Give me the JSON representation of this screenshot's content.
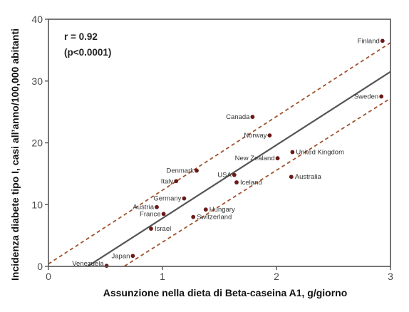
{
  "chart_data": {
    "type": "scatter",
    "xlabel": "Assunzione nella dieta di Beta-caseina A1, g/giorno",
    "ylabel": "Incidenza diabete tipo I, casi all’anno/100,000 abitanti",
    "xlim": [
      0,
      3
    ],
    "ylim": [
      0,
      40
    ],
    "x_ticks": [
      "0",
      "1",
      "2",
      "3"
    ],
    "y_ticks": [
      "0",
      "10",
      "20",
      "30",
      "40"
    ],
    "grid": false,
    "annotation": [
      "r = 0.92",
      "(p<0.0001)"
    ],
    "points": [
      {
        "label": "Finland",
        "x": 2.93,
        "y": 36.5
      },
      {
        "label": "Sweden",
        "x": 2.92,
        "y": 27.5
      },
      {
        "label": "Canada",
        "x": 1.79,
        "y": 24.2
      },
      {
        "label": "Norway",
        "x": 1.94,
        "y": 21.2
      },
      {
        "label": "New Zealand",
        "x": 2.01,
        "y": 17.5
      },
      {
        "label": "United Kingdom",
        "x": 2.14,
        "y": 18.5
      },
      {
        "label": "Australia",
        "x": 2.13,
        "y": 14.5
      },
      {
        "label": "Denmark",
        "x": 1.3,
        "y": 15.5
      },
      {
        "label": "USA",
        "x": 1.63,
        "y": 14.8
      },
      {
        "label": "Iceland",
        "x": 1.65,
        "y": 13.6
      },
      {
        "label": "Italy",
        "x": 1.12,
        "y": 13.8
      },
      {
        "label": "Germany",
        "x": 1.19,
        "y": 11.0
      },
      {
        "label": "Austria",
        "x": 0.95,
        "y": 9.6
      },
      {
        "label": "Hungary",
        "x": 1.38,
        "y": 9.2
      },
      {
        "label": "France",
        "x": 1.01,
        "y": 8.5
      },
      {
        "label": "Switzerland",
        "x": 1.27,
        "y": 8.0
      },
      {
        "label": "Israel",
        "x": 0.9,
        "y": 6.1
      },
      {
        "label": "Japan",
        "x": 0.74,
        "y": 1.7
      },
      {
        "label": "Venezuela",
        "x": 0.51,
        "y": 0.1
      }
    ],
    "regression_line": {
      "x": [
        0.3,
        3.0
      ],
      "y": [
        -0.5,
        31.5
      ],
      "color": "#555555"
    },
    "confidence_bands": [
      {
        "x": [
          0.0,
          3.0
        ],
        "y": [
          0.4,
          36.2
        ]
      },
      {
        "x": [
          0.62,
          3.0
        ],
        "y": [
          -0.5,
          27.2
        ]
      }
    ],
    "colors": {
      "point": "#6b1a1a",
      "band": "#a0522d",
      "axis": "#555555"
    }
  }
}
